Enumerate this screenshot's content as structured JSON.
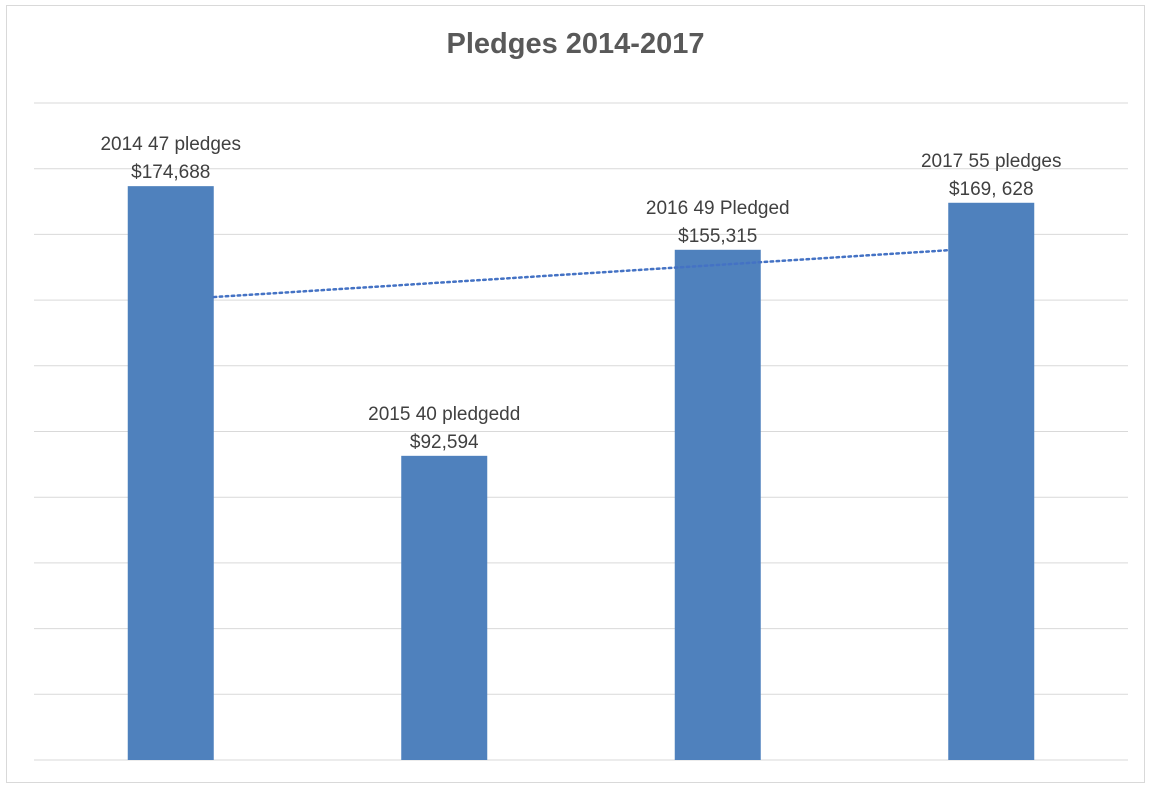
{
  "chart_data": {
    "type": "bar",
    "title": "Pledges 2014-2017",
    "categories": [
      "2014",
      "2015",
      "2016",
      "2017"
    ],
    "values": [
      174688,
      92594,
      155315,
      169628
    ],
    "pledges": [
      47,
      40,
      49,
      55
    ],
    "data_labels": [
      [
        "2014 47 pledges",
        "$174,688"
      ],
      [
        "2015  40 pledgedd",
        "$92,594"
      ],
      [
        "2016 49 Pledged",
        "$155,315"
      ],
      [
        "2017  55 pledges",
        "$169, 628"
      ]
    ],
    "trendline": {
      "style": "dotted",
      "type": "linear"
    },
    "ylim": [
      0,
      200000
    ],
    "grid": true,
    "xlabel": "",
    "ylabel": "",
    "colors": {
      "bar": "#4f81bd",
      "trend": "#4472c4",
      "grid": "#d9d9d9"
    }
  }
}
